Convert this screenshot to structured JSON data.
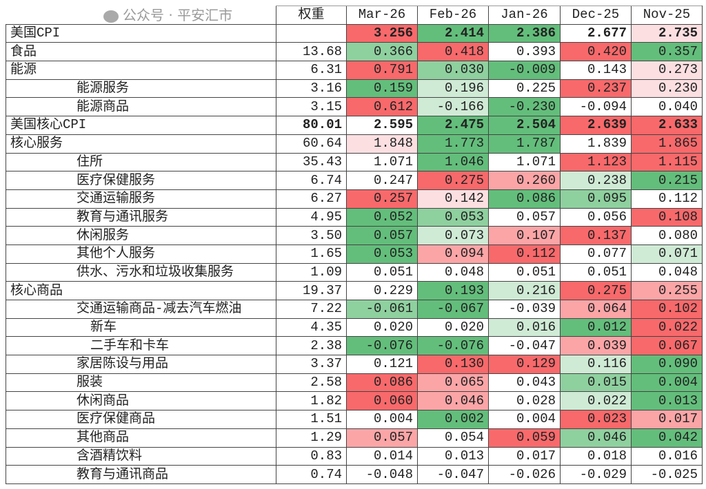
{
  "header": {
    "weight": "权重",
    "months": [
      "Mar-26",
      "Feb-26",
      "Jan-26",
      "Dec-25",
      "Nov-25"
    ]
  },
  "colors": {
    "R3": "#f8696b",
    "R2": "#fba5a7",
    "R1": "#fcdfe1",
    "W": "#ffffff",
    "G1": "#cfead5",
    "G2": "#8fd09f",
    "G3": "#63be7b"
  },
  "rows": [
    {
      "label": "美国CPI",
      "level": 0,
      "bold": true,
      "weight": "",
      "values": [
        "3.256",
        "2.414",
        "2.386",
        "2.677",
        "2.735"
      ],
      "heat": [
        "R3",
        "G3",
        "G3",
        "W",
        "R1"
      ]
    },
    {
      "label": "食品",
      "level": 0,
      "weight": "13.68",
      "values": [
        "0.366",
        "0.418",
        "0.393",
        "0.420",
        "0.357"
      ],
      "heat": [
        "G2",
        "R3",
        "W",
        "R3",
        "G3"
      ]
    },
    {
      "label": "能源",
      "level": 0,
      "weight": "6.31",
      "values": [
        "0.791",
        "0.030",
        "-0.009",
        "0.143",
        "0.273"
      ],
      "heat": [
        "R3",
        "G2",
        "G3",
        "W",
        "R1"
      ]
    },
    {
      "label": "能源服务",
      "level": 1,
      "weight": "3.16",
      "values": [
        "0.159",
        "0.196",
        "0.225",
        "0.237",
        "0.230"
      ],
      "heat": [
        "G3",
        "G1",
        "W",
        "R3",
        "R1"
      ]
    },
    {
      "label": "能源商品",
      "level": 1,
      "weight": "3.15",
      "values": [
        "0.612",
        "-0.166",
        "-0.230",
        "-0.094",
        "0.040"
      ],
      "heat": [
        "R3",
        "G1",
        "G3",
        "W",
        "W"
      ]
    },
    {
      "label": "美国核心CPI",
      "level": 0,
      "bold": true,
      "weight": "80.01",
      "values": [
        "2.595",
        "2.475",
        "2.504",
        "2.639",
        "2.633"
      ],
      "heat": [
        "W",
        "G3",
        "G3",
        "R3",
        "R3"
      ]
    },
    {
      "label": "核心服务",
      "level": 0,
      "weight": "60.64",
      "values": [
        "1.848",
        "1.773",
        "1.787",
        "1.839",
        "1.865"
      ],
      "heat": [
        "R1",
        "G3",
        "G3",
        "W",
        "R3"
      ]
    },
    {
      "label": "住所",
      "level": 1,
      "weight": "35.43",
      "values": [
        "1.071",
        "1.046",
        "1.071",
        "1.123",
        "1.115"
      ],
      "heat": [
        "W",
        "G3",
        "W",
        "R3",
        "R3"
      ]
    },
    {
      "label": "医疗保健服务",
      "level": 1,
      "weight": "6.74",
      "values": [
        "0.247",
        "0.275",
        "0.260",
        "0.238",
        "0.215"
      ],
      "heat": [
        "W",
        "R3",
        "R2",
        "G1",
        "G3"
      ]
    },
    {
      "label": "交通运输服务",
      "level": 1,
      "weight": "6.27",
      "values": [
        "0.257",
        "0.142",
        "0.086",
        "0.095",
        "0.112"
      ],
      "heat": [
        "R3",
        "R1",
        "G3",
        "G2",
        "W"
      ]
    },
    {
      "label": "教育与通讯服务",
      "level": 1,
      "weight": "4.95",
      "values": [
        "0.052",
        "0.053",
        "0.057",
        "0.056",
        "0.108"
      ],
      "heat": [
        "G3",
        "G2",
        "W",
        "W",
        "R3"
      ]
    },
    {
      "label": "休闲服务",
      "level": 1,
      "weight": "3.50",
      "values": [
        "0.057",
        "0.073",
        "0.107",
        "0.137",
        "0.080"
      ],
      "heat": [
        "G3",
        "G1",
        "R2",
        "R3",
        "W"
      ]
    },
    {
      "label": "其他个人服务",
      "level": 1,
      "weight": "1.65",
      "values": [
        "0.053",
        "0.094",
        "0.112",
        "0.077",
        "0.071"
      ],
      "heat": [
        "G3",
        "R2",
        "R3",
        "W",
        "G1"
      ]
    },
    {
      "label": "供水、污水和垃圾收集服务",
      "level": 1,
      "weight": "1.09",
      "values": [
        "0.051",
        "0.048",
        "0.051",
        "0.051",
        "0.048"
      ],
      "heat": [
        "W",
        "W",
        "W",
        "W",
        "W"
      ]
    },
    {
      "label": "核心商品",
      "level": 0,
      "weight": "19.37",
      "values": [
        "0.229",
        "0.193",
        "0.216",
        "0.275",
        "0.255"
      ],
      "heat": [
        "W",
        "G3",
        "G1",
        "R3",
        "R2"
      ]
    },
    {
      "label": "交通运输商品-减去汽车燃油",
      "level": 1,
      "weight": "7.22",
      "values": [
        "-0.061",
        "-0.067",
        "-0.039",
        "0.064",
        "0.102"
      ],
      "heat": [
        "G2",
        "G3",
        "W",
        "R2",
        "R3"
      ]
    },
    {
      "label": "新车",
      "level": 2,
      "weight": "4.35",
      "values": [
        "0.020",
        "0.020",
        "0.016",
        "0.012",
        "0.022"
      ],
      "heat": [
        "W",
        "W",
        "G1",
        "G3",
        "R3"
      ]
    },
    {
      "label": "二手车和卡车",
      "level": 2,
      "weight": "2.38",
      "values": [
        "-0.076",
        "-0.076",
        "-0.047",
        "0.039",
        "0.067"
      ],
      "heat": [
        "G3",
        "G3",
        "W",
        "R2",
        "R3"
      ]
    },
    {
      "label": "家居陈设与用品",
      "level": 1,
      "weight": "3.37",
      "values": [
        "0.121",
        "0.130",
        "0.129",
        "0.116",
        "0.090"
      ],
      "heat": [
        "W",
        "R3",
        "R3",
        "G1",
        "G3"
      ]
    },
    {
      "label": "服装",
      "level": 1,
      "weight": "2.58",
      "values": [
        "0.086",
        "0.065",
        "0.043",
        "0.015",
        "0.004"
      ],
      "heat": [
        "R3",
        "R2",
        "W",
        "G2",
        "G3"
      ]
    },
    {
      "label": "休闲商品",
      "level": 1,
      "weight": "1.82",
      "values": [
        "0.060",
        "0.046",
        "0.028",
        "0.022",
        "0.013"
      ],
      "heat": [
        "R3",
        "R2",
        "W",
        "G1",
        "G3"
      ]
    },
    {
      "label": "医疗保健商品",
      "level": 1,
      "weight": "1.51",
      "values": [
        "0.004",
        "0.002",
        "0.004",
        "0.023",
        "0.017"
      ],
      "heat": [
        "W",
        "G3",
        "W",
        "R3",
        "R2"
      ]
    },
    {
      "label": "其他商品",
      "level": 1,
      "weight": "1.29",
      "values": [
        "0.057",
        "0.054",
        "0.059",
        "0.046",
        "0.042"
      ],
      "heat": [
        "R2",
        "W",
        "R3",
        "G2",
        "G3"
      ]
    },
    {
      "label": "含酒精饮料",
      "level": 1,
      "weight": "0.83",
      "values": [
        "0.014",
        "0.013",
        "0.017",
        "0.018",
        "0.016"
      ],
      "heat": [
        "W",
        "W",
        "W",
        "W",
        "W"
      ]
    },
    {
      "label": "教育与通讯商品",
      "level": 1,
      "weight": "0.74",
      "values": [
        "-0.048",
        "-0.047",
        "-0.026",
        "-0.029",
        "-0.025"
      ],
      "heat": [
        "W",
        "W",
        "W",
        "W",
        "W"
      ]
    }
  ],
  "watermark": "公众号 · 平安汇市"
}
